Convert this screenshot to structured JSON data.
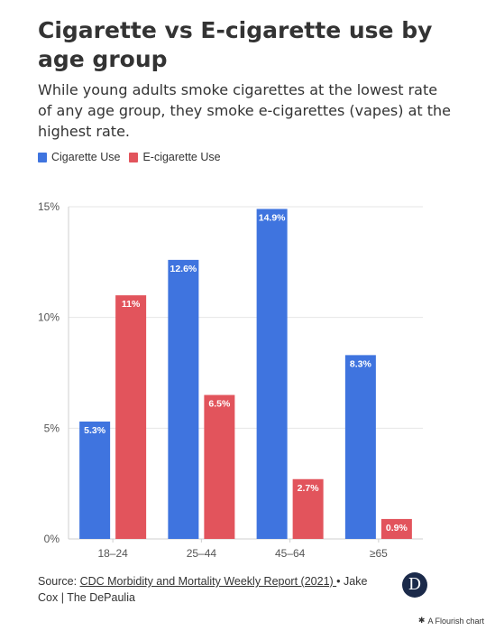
{
  "title": "Cigarette vs E-cigarette use by age group",
  "subtitle": "While young adults smoke cigarettes at the lowest rate of any age group, they smoke e-cigarettes (vapes) at the highest rate.",
  "footer": {
    "source_prefix": "Source: ",
    "source_link": "CDC Morbidity and Mortality Weekly Report (2021) ",
    "credit": "• Jake Cox | The DePaulia",
    "logo_letter": "D",
    "flourish_label": "A Flourish chart",
    "flourish_icon": "asterisk-icon"
  },
  "chart_data": {
    "type": "bar",
    "title": "Cigarette vs E-cigarette use by age group",
    "categories": [
      "18–24",
      "25–44",
      "45–64",
      "≥65"
    ],
    "series": [
      {
        "name": "Cigarette Use",
        "color": "#3f74df",
        "values": [
          5.3,
          12.6,
          14.9,
          8.3
        ],
        "labels": [
          "5.3%",
          "12.6%",
          "14.9%",
          "8.3%"
        ]
      },
      {
        "name": "E-cigarette Use",
        "color": "#e2545c",
        "values": [
          11,
          6.5,
          2.7,
          0.9
        ],
        "labels": [
          "11%",
          "6.5%",
          "2.7%",
          "0.9%"
        ]
      }
    ],
    "ylim": [
      0,
      15
    ],
    "yticks": [
      0,
      5,
      10,
      15
    ],
    "ytick_labels": [
      "0%",
      "5%",
      "10%",
      "15%"
    ],
    "xlabel": "",
    "ylabel": "",
    "grid": true,
    "legend_position": "top-left"
  }
}
